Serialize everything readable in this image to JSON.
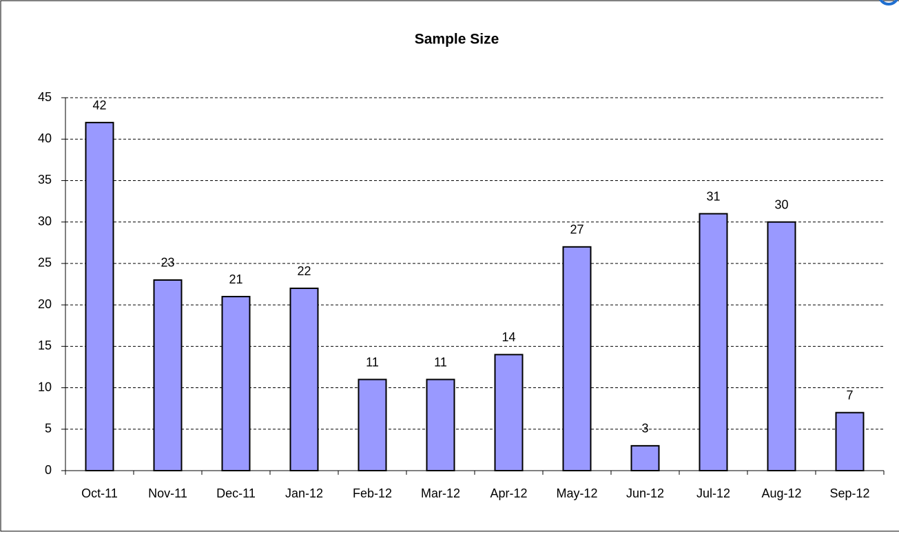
{
  "chart_data": {
    "type": "bar",
    "title": "Sample Size",
    "categories": [
      "Oct-11",
      "Nov-11",
      "Dec-11",
      "Jan-12",
      "Feb-12",
      "Mar-12",
      "Apr-12",
      "May-12",
      "Jun-12",
      "Jul-12",
      "Aug-12",
      "Sep-12"
    ],
    "values": [
      42,
      23,
      21,
      22,
      11,
      11,
      14,
      27,
      3,
      31,
      30,
      7
    ],
    "color": "#9999ff",
    "ylim": [
      0,
      45
    ],
    "yticks": [
      0,
      5,
      10,
      15,
      20,
      25,
      30,
      35,
      40,
      45
    ],
    "grid": true
  }
}
